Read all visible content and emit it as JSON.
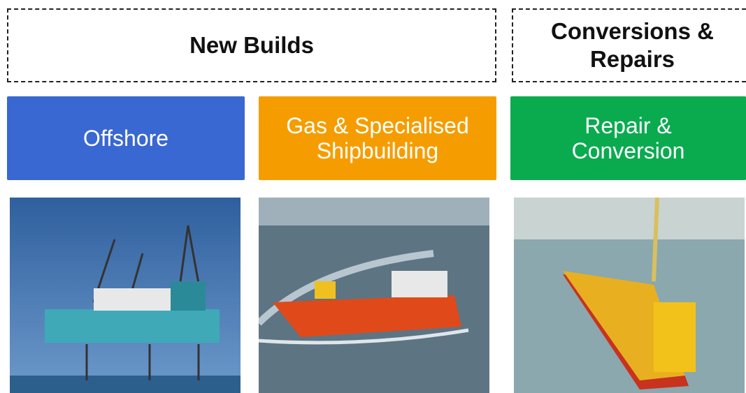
{
  "groups": [
    {
      "lines": [
        "New Builds"
      ]
    },
    {
      "lines": [
        "Conversions &",
        "Repairs"
      ]
    }
  ],
  "categories": [
    {
      "lines": [
        "Offshore"
      ]
    },
    {
      "lines": [
        "Gas & Specialised",
        "Shipbuilding"
      ]
    },
    {
      "lines": [
        "Repair &",
        "Conversion"
      ]
    }
  ]
}
